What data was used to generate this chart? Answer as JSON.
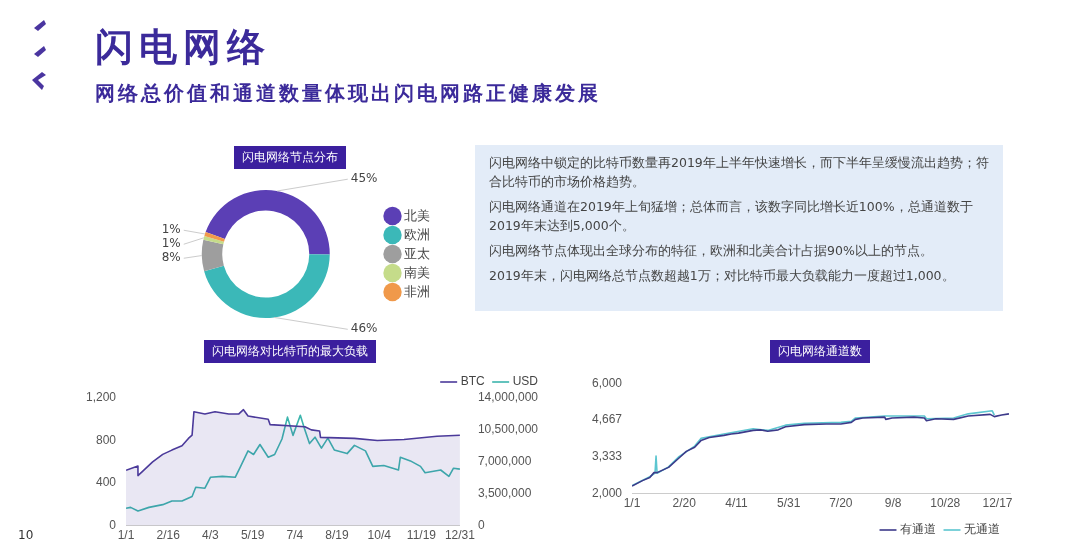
{
  "chart_data": [
    {
      "type": "other",
      "title": "闪电网络",
      "subtitle": "网络总价值和通道数量体现出闪电网路正健康发展",
      "annotations": [
        "闪电网络中锁定的比特币数量再2019年上半年快速增长，而下半年呈缓慢流出趋势；符合比特币的市场价格趋势。",
        "闪电网络通道在2019年上旬猛增；总体而言，该数字同比增长近100%，总通道数于2019年末达到5,000个。",
        "闪电网络节点体现出全球分布的特征，欧洲和北美合计占据90%以上的节点。",
        "2019年末，闪电网络总节点数超越1万；对比特币最大负载能力一度超过1,000。",
        "10"
      ]
    },
    {
      "type": "donut",
      "title": "闪电网络节点分布",
      "categories": [
        "北美",
        "欧洲",
        "亚太",
        "南美",
        "非洲"
      ],
      "values": [
        45,
        46,
        8,
        1,
        1
      ],
      "colors": [
        "#5b3fb5",
        "#3bb8b8",
        "#9e9e9e",
        "#c5dc8a",
        "#f0994a"
      ],
      "value_labels": [
        "45%",
        "46%",
        "8%",
        "1%",
        "1%"
      ],
      "legend": "right"
    },
    {
      "type": "line",
      "title": "闪电网络对比特币的最大负载",
      "xlim": [
        "--01-01",
        "--12-31"
      ],
      "xticks": [
        {
          "value": "--01-01",
          "label": "1/1"
        },
        {
          "value": "--02-16",
          "label": "2/16"
        },
        {
          "value": "--04-03",
          "label": "4/3"
        },
        {
          "value": "--05-19",
          "label": "5/19"
        },
        {
          "value": "--07-04",
          "label": "7/4"
        },
        {
          "value": "--08-19",
          "label": "8/19"
        },
        {
          "value": "--10-04",
          "label": "10/4"
        },
        {
          "value": "--11-19",
          "label": "11/19"
        },
        {
          "value": "--12-31",
          "label": "12/31"
        }
      ],
      "ylim": [
        0,
        1200
      ],
      "yticks": [
        0,
        400,
        800,
        {
          "value": 1200,
          "label": "1,200"
        }
      ],
      "y2lim": [
        0,
        14000000
      ],
      "y2ticks": [
        0,
        {
          "value": 3500000,
          "label": "3,500,000"
        },
        {
          "value": 7000000,
          "label": "7,000,000"
        },
        {
          "value": 10500000,
          "label": "10,500,000"
        },
        {
          "value": 14000000,
          "label": "14,000,000"
        }
      ],
      "legend": "top right",
      "marker": "none",
      "series": [
        {
          "name": "BTC",
          "type": "area",
          "color": "#4b3a9a",
          "x": [
            "--01-01",
            "--01-14",
            "--01-14",
            "--01-19",
            "--01-30",
            "--02-10",
            "--02-20",
            "--03-03",
            "--03-10",
            "--03-14",
            "--03-16",
            "--03-28",
            "--04-08",
            "--04-23",
            "--05-04",
            "--05-09",
            "--05-14",
            "--06-05",
            "--06-07",
            "--07-15",
            "--07-22",
            "--07-31",
            "--08-01",
            "--09-07",
            "--10-02",
            "--10-31",
            "--12-06",
            "--12-31"
          ],
          "values": [
            520,
            560,
            470,
            510,
            600,
            670,
            710,
            750,
            820,
            850,
            1070,
            1050,
            1070,
            1050,
            1050,
            1090,
            1030,
            1000,
            950,
            930,
            900,
            890,
            830,
            820,
            800,
            810,
            840,
            850
          ]
        },
        {
          "name": "USD",
          "color": "#3cb5ad",
          "axis": "y2",
          "x": [
            "--01-01",
            "--01-06",
            "--01-14",
            "--01-26",
            "--02-10",
            "--02-20",
            "--03-03",
            "--03-14",
            "--03-18",
            "--03-28",
            "--04-03",
            "--04-16",
            "--04-30",
            "--05-05",
            "--05-14",
            "--05-20",
            "--05-27",
            "--06-05",
            "--06-12",
            "--06-20",
            "--06-26",
            "--07-02",
            "--07-10",
            "--07-15",
            "--07-20",
            "--07-26",
            "--08-02",
            "--08-09",
            "--08-16",
            "--08-30",
            "--09-07",
            "--09-19",
            "--09-27",
            "--10-09",
            "--10-25",
            "--10-27",
            "--11-07",
            "--11-18",
            "--11-23",
            "--12-10",
            "--12-19",
            "--12-24",
            "--12-31"
          ],
          "values": [
            1900000,
            2000000,
            1600000,
            2000000,
            2300000,
            2700000,
            2700000,
            3200000,
            4200000,
            4100000,
            5300000,
            5400000,
            5300000,
            6300000,
            8200000,
            7800000,
            8900000,
            7500000,
            7800000,
            9500000,
            11900000,
            9900000,
            12100000,
            10500000,
            9000000,
            9700000,
            8500000,
            9600000,
            8300000,
            7900000,
            8800000,
            8200000,
            6500000,
            6600000,
            6100000,
            7500000,
            7100000,
            6500000,
            5800000,
            6100000,
            5400000,
            6300000,
            6200000
          ]
        }
      ]
    },
    {
      "type": "line",
      "title": "闪电网络通道数",
      "xlim": [
        "--01-01",
        "--12-29"
      ],
      "xticks": [
        {
          "value": "--01-01",
          "label": "1/1"
        },
        {
          "value": "--02-20",
          "label": "2/20"
        },
        {
          "value": "--04-11",
          "label": "4/11"
        },
        {
          "value": "--05-31",
          "label": "5/31"
        },
        {
          "value": "--07-20",
          "label": "7/20"
        },
        {
          "value": "--09-08",
          "label": "9/8"
        },
        {
          "value": "--10-28",
          "label": "10/28"
        },
        {
          "value": "--12-17",
          "label": "12/17"
        }
      ],
      "ylim": [
        2000,
        6000
      ],
      "yticks": [
        {
          "value": 2000,
          "label": "2,000"
        },
        {
          "value": 3333,
          "label": "3,333"
        },
        {
          "value": 4667,
          "label": "4,667"
        },
        {
          "value": 6000,
          "label": "6,000"
        }
      ],
      "legend": "bottom right",
      "marker": "none",
      "series": [
        {
          "name": "有通道",
          "color": "#3d3a8a",
          "x": [
            "--01-01",
            "--01-11",
            "--01-18",
            "--01-22",
            "--01-25",
            "--02-05",
            "--02-15",
            "--02-22",
            "--03-02",
            "--03-08",
            "--03-16",
            "--03-30",
            "--04-06",
            "--04-13",
            "--04-27",
            "--05-04",
            "--05-11",
            "--05-21",
            "--05-28",
            "--06-15",
            "--07-06",
            "--07-20",
            "--07-30",
            "--08-03",
            "--08-10",
            "--08-31",
            "--09-01",
            "--09-07",
            "--09-28",
            "--10-08",
            "--10-10",
            "--10-19",
            "--11-05",
            "--11-19",
            "--12-10",
            "--12-14",
            "--12-21",
            "--12-28"
          ],
          "values": [
            2270,
            2470,
            2580,
            2760,
            2760,
            2950,
            3290,
            3530,
            3680,
            3920,
            4030,
            4110,
            4160,
            4190,
            4290,
            4310,
            4260,
            4310,
            4420,
            4500,
            4520,
            4520,
            4580,
            4690,
            4740,
            4770,
            4690,
            4740,
            4770,
            4740,
            4640,
            4710,
            4690,
            4810,
            4870,
            4790,
            4850,
            4890
          ]
        },
        {
          "name": "无通道",
          "color": "#5cc6d0",
          "x": [
            "--01-01",
            "--01-18",
            "--01-23",
            "--01-24",
            "--01-25",
            "--02-05",
            "--02-15",
            "--03-02",
            "--03-08",
            "--03-30",
            "--04-27",
            "--05-11",
            "--05-28",
            "--06-15",
            "--07-20",
            "--07-30",
            "--08-03",
            "--08-31",
            "--10-08",
            "--10-10",
            "--11-05",
            "--11-19",
            "--12-12",
            "--12-14"
          ],
          "values": [
            2290,
            2610,
            2740,
            3360,
            2740,
            2970,
            3340,
            3720,
            4000,
            4160,
            4350,
            4290,
            4480,
            4550,
            4580,
            4620,
            4740,
            4810,
            4810,
            4710,
            4740,
            4890,
            5000,
            4840
          ]
        }
      ]
    }
  ]
}
